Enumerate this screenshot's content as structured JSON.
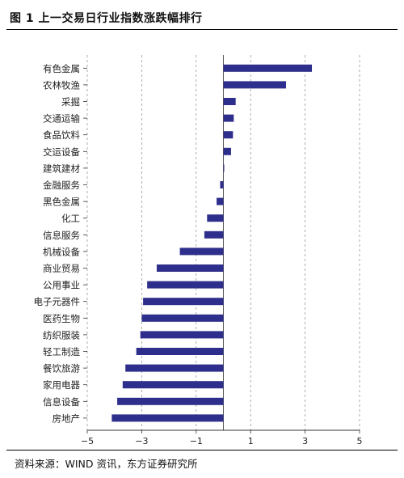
{
  "figure": {
    "title": "图 1  上一交易日行业指数涨跌幅排行",
    "source": "资料来源：WIND 资讯，东方证券研究所"
  },
  "chart_data": {
    "type": "bar",
    "orientation": "horizontal",
    "categories": [
      "有色金属",
      "农林牧渔",
      "采掘",
      "交通运输",
      "食品饮料",
      "交运设备",
      "建筑建材",
      "金融服务",
      "黑色金属",
      "化工",
      "信息服务",
      "机械设备",
      "商业贸易",
      "公用事业",
      "电子元器件",
      "医药生物",
      "纺织服装",
      "轻工制造",
      "餐饮旅游",
      "家用电器",
      "信息设备",
      "房地产"
    ],
    "values": [
      3.25,
      2.3,
      0.45,
      0.38,
      0.35,
      0.28,
      0.02,
      -0.12,
      -0.25,
      -0.6,
      -0.7,
      -1.6,
      -2.45,
      -2.8,
      -2.95,
      -3.0,
      -3.05,
      -3.2,
      -3.6,
      -3.7,
      -3.9,
      -4.1
    ],
    "xlim": [
      -5,
      5
    ],
    "xticks": [
      -5,
      -3,
      -1,
      1,
      3,
      5
    ],
    "xtick_labels": [
      "−5",
      "−3",
      "−1",
      "1",
      "3",
      "5"
    ],
    "grid": "vertical dashed",
    "bar_color": "#2e2e8c",
    "title": "",
    "xlabel": "",
    "ylabel": ""
  }
}
